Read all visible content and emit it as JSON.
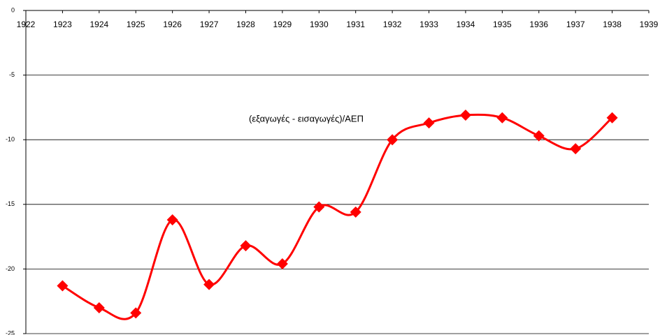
{
  "chart_data": {
    "type": "line",
    "x": [
      1923,
      1924,
      1925,
      1926,
      1927,
      1928,
      1929,
      1930,
      1931,
      1932,
      1933,
      1934,
      1935,
      1936,
      1937,
      1938
    ],
    "series": [
      {
        "name": "(εξαγωγές - εισαγωγές)/ΑΕΠ",
        "color": "#ff0000",
        "values": [
          -21.3,
          -23.0,
          -23.4,
          -16.2,
          -21.2,
          -18.2,
          -19.6,
          -15.2,
          -15.6,
          -10.0,
          -8.7,
          -8.1,
          -8.3,
          -9.7,
          -10.7,
          -8.3
        ]
      }
    ],
    "xlim": [
      1922,
      1939
    ],
    "xticks": [
      1922,
      1923,
      1924,
      1925,
      1926,
      1927,
      1928,
      1929,
      1930,
      1931,
      1932,
      1933,
      1934,
      1935,
      1936,
      1937,
      1938,
      1939
    ],
    "ylim": [
      -25,
      0
    ],
    "yticks": [
      0,
      -5,
      -10,
      -15,
      -20,
      -25
    ],
    "grid": true
  }
}
